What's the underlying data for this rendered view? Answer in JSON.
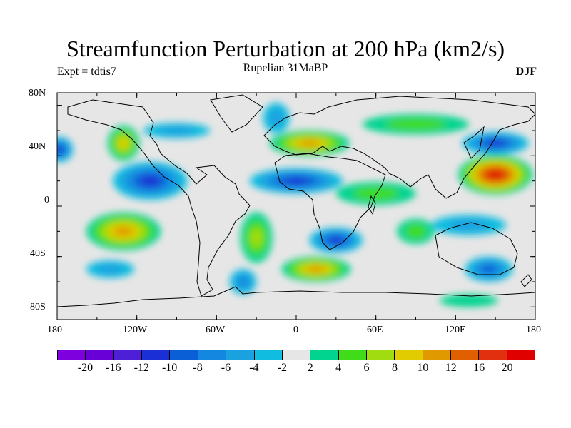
{
  "header": {
    "title": "Streamfunction Perturbation at 200 hPa (km2/s)",
    "left_string": "Expt = tdtis7",
    "center_string": "Rupelian  31MaBP",
    "right_string": "DJF"
  },
  "axes": {
    "x_ticks": [
      "180",
      "120W",
      "60W",
      "0",
      "60E",
      "120E",
      "180"
    ],
    "y_ticks": [
      "80N",
      "40N",
      "0",
      "40S",
      "80S"
    ]
  },
  "chart_data": {
    "type": "heatmap",
    "title": "Streamfunction Perturbation at 200 hPa (km2/s)",
    "units": "km2/s",
    "season": "DJF",
    "experiment": "tdtis7",
    "period": "Rupelian 31MaBP",
    "lon_range": [
      -180,
      180
    ],
    "lat_range": [
      -90,
      90
    ],
    "contour_levels": [
      -20,
      -16,
      -12,
      -10,
      -8,
      -6,
      -4,
      -2,
      2,
      4,
      6,
      8,
      10,
      12,
      16,
      20
    ],
    "colorbar_labels": [
      "-20",
      "-16",
      "-12",
      "-10",
      "-8",
      "-6",
      "-4",
      "-2",
      "2",
      "4",
      "6",
      "8",
      "10",
      "12",
      "16",
      "20"
    ],
    "colors": [
      "#7f00df",
      "#6a00d8",
      "#4d1fd6",
      "#1a2fd6",
      "#0a5fd6",
      "#1488e0",
      "#1aa2e0",
      "#10bde0",
      "#e6e6e6",
      "#00d48f",
      "#40dc1a",
      "#a0dc10",
      "#e0cc00",
      "#e09a00",
      "#e06000",
      "#e03010",
      "#e00000"
    ],
    "features": [
      {
        "lon": 150,
        "lat": 25,
        "value": 22,
        "rx": 28,
        "ry": 16
      },
      {
        "lon": 10,
        "lat": 50,
        "value": 11,
        "rx": 30,
        "ry": 10
      },
      {
        "lon": -130,
        "lat": 50,
        "value": 10,
        "rx": 12,
        "ry": 14
      },
      {
        "lon": -130,
        "lat": -20,
        "value": 12,
        "rx": 28,
        "ry": 15
      },
      {
        "lon": 15,
        "lat": -50,
        "value": 12,
        "rx": 26,
        "ry": 10
      },
      {
        "lon": -30,
        "lat": -25,
        "value": 7,
        "rx": 12,
        "ry": 20
      },
      {
        "lon": 60,
        "lat": 10,
        "value": 6,
        "rx": 30,
        "ry": 9
      },
      {
        "lon": 90,
        "lat": -20,
        "value": 5,
        "rx": 14,
        "ry": 10
      },
      {
        "lon": 90,
        "lat": 65,
        "value": 5,
        "rx": 40,
        "ry": 8
      },
      {
        "lon": 130,
        "lat": -75,
        "value": 4,
        "rx": 22,
        "ry": 5
      },
      {
        "lon": -110,
        "lat": 20,
        "value": -12,
        "rx": 28,
        "ry": 15
      },
      {
        "lon": 0,
        "lat": 20,
        "value": -12,
        "rx": 35,
        "ry": 10
      },
      {
        "lon": 150,
        "lat": 50,
        "value": -12,
        "rx": 25,
        "ry": 9
      },
      {
        "lon": -178,
        "lat": 45,
        "value": -12,
        "rx": 10,
        "ry": 10
      },
      {
        "lon": 30,
        "lat": -27,
        "value": -12,
        "rx": 20,
        "ry": 10
      },
      {
        "lon": 145,
        "lat": -50,
        "value": -10,
        "rx": 18,
        "ry": 10
      },
      {
        "lon": -140,
        "lat": -50,
        "value": -6,
        "rx": 18,
        "ry": 7
      },
      {
        "lon": -40,
        "lat": -60,
        "value": -8,
        "rx": 10,
        "ry": 10
      },
      {
        "lon": 130,
        "lat": -15,
        "value": -6,
        "rx": 28,
        "ry": 8
      },
      {
        "lon": -90,
        "lat": 60,
        "value": -6,
        "rx": 25,
        "ry": 6
      },
      {
        "lon": -15,
        "lat": 70,
        "value": -5,
        "rx": 10,
        "ry": 12
      }
    ]
  }
}
